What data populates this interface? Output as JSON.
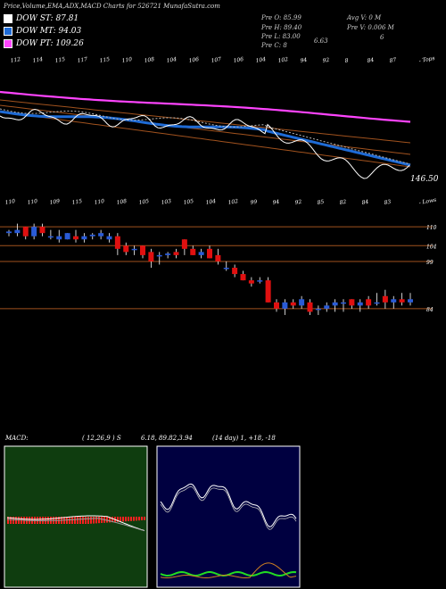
{
  "header": {
    "title": "Price,Volume,EMA,ADX,MACD Charts for 526721 MunafaSutra.com"
  },
  "legend": [
    {
      "label": "DOW ST: 87.81",
      "color": "#ffffff"
    },
    {
      "label": "DOW MT: 94.03",
      "color": "#1e6bd6"
    },
    {
      "label": "DOW PT: 109.26",
      "color": "#ff44ff"
    }
  ],
  "stats": {
    "pre_o": "Pre  O: 85.99",
    "pre_h": "Pre  H: 89.40",
    "pre_l": "Pre  L: 83.00",
    "pre_c": "Pre  C: 8",
    "avg_v": "Avg V: 0  M",
    "pre_v": "Pre  V: 0.006  M",
    "val_663": "6.63",
    "val_6": "6"
  },
  "top_axis": {
    "labels": [
      "112",
      "114",
      "115",
      "117",
      "115",
      "110",
      "108",
      "104",
      "106",
      "107",
      "106",
      "104",
      "102",
      "94",
      "92",
      "8",
      "84",
      "87",
      "- Tops"
    ],
    "bottom_labels": [
      "110",
      "110",
      "109",
      "115",
      "110",
      "108",
      "105",
      "103",
      "105",
      "104",
      "102",
      "99",
      "94",
      "92",
      "85",
      "82",
      "84",
      "83",
      "- Lows"
    ],
    "price_tag": "146.50"
  },
  "price_levels": [
    {
      "label": "110",
      "value": 110
    },
    {
      "label": "104",
      "value": 104
    },
    {
      "label": "99",
      "value": 99
    },
    {
      "label": "84",
      "value": 84
    }
  ],
  "macd_panel": {
    "title": "MACD:",
    "params": "( 12,26,9 ) S",
    "values": "6.18, 89.82,3.94"
  },
  "adx_panel": {
    "title": "(14  day) 1, +18, -18"
  },
  "colors": {
    "bull": "#2a5bd7",
    "bear": "#e01010",
    "level": "#a0521e",
    "macd_bg": "#0f3d0f",
    "adx_bg": "#000040"
  },
  "chart_data": {
    "type": "candlestick",
    "title": "Price,Volume,EMA,ADX,MACD Charts for 526721",
    "ylim": [
      80,
      114
    ],
    "candles": [
      {
        "o": 108,
        "h": 109,
        "l": 107,
        "c": 108.5
      },
      {
        "o": 108,
        "h": 111,
        "l": 107,
        "c": 109
      },
      {
        "o": 110,
        "h": 110,
        "l": 106,
        "c": 107
      },
      {
        "o": 107,
        "h": 111,
        "l": 106,
        "c": 110
      },
      {
        "o": 110,
        "h": 111,
        "l": 107,
        "c": 108
      },
      {
        "o": 107,
        "h": 109,
        "l": 106,
        "c": 107
      },
      {
        "o": 106,
        "h": 109,
        "l": 105,
        "c": 107
      },
      {
        "o": 106,
        "h": 108,
        "l": 106,
        "c": 108
      },
      {
        "o": 107,
        "h": 109,
        "l": 105,
        "c": 106
      },
      {
        "o": 106,
        "h": 108,
        "l": 105,
        "c": 107
      },
      {
        "o": 107,
        "h": 108,
        "l": 106,
        "c": 107.5
      },
      {
        "o": 107,
        "h": 109,
        "l": 106,
        "c": 108
      },
      {
        "o": 106,
        "h": 108,
        "l": 105,
        "c": 107
      },
      {
        "o": 107,
        "h": 108,
        "l": 101,
        "c": 103
      },
      {
        "o": 104,
        "h": 105,
        "l": 101,
        "c": 102
      },
      {
        "o": 103,
        "h": 104,
        "l": 101,
        "c": 103
      },
      {
        "o": 104,
        "h": 104,
        "l": 100,
        "c": 101
      },
      {
        "o": 102,
        "h": 103,
        "l": 97,
        "c": 99
      },
      {
        "o": 101,
        "h": 102,
        "l": 98,
        "c": 101
      },
      {
        "o": 101,
        "h": 102,
        "l": 100,
        "c": 101.5
      },
      {
        "o": 102,
        "h": 103,
        "l": 100,
        "c": 101
      },
      {
        "o": 106,
        "h": 106,
        "l": 101,
        "c": 103
      },
      {
        "o": 103,
        "h": 104,
        "l": 101,
        "c": 101
      },
      {
        "o": 101,
        "h": 103,
        "l": 100,
        "c": 102
      },
      {
        "o": 103,
        "h": 104,
        "l": 100,
        "c": 100
      },
      {
        "o": 101,
        "h": 103,
        "l": 98,
        "c": 99
      },
      {
        "o": 97,
        "h": 99,
        "l": 96,
        "c": 97
      },
      {
        "o": 97,
        "h": 98,
        "l": 94,
        "c": 95
      },
      {
        "o": 95,
        "h": 96,
        "l": 93,
        "c": 93
      },
      {
        "o": 93,
        "h": 94,
        "l": 91,
        "c": 92
      },
      {
        "o": 93,
        "h": 94,
        "l": 92,
        "c": 93
      },
      {
        "o": 93,
        "h": 94,
        "l": 86,
        "c": 86
      },
      {
        "o": 86,
        "h": 87,
        "l": 83,
        "c": 84
      },
      {
        "o": 84,
        "h": 87,
        "l": 82,
        "c": 86
      },
      {
        "o": 86,
        "h": 87,
        "l": 84,
        "c": 85
      },
      {
        "o": 85,
        "h": 88,
        "l": 84,
        "c": 87
      },
      {
        "o": 86,
        "h": 87,
        "l": 82,
        "c": 83
      },
      {
        "o": 84,
        "h": 85,
        "l": 82,
        "c": 84
      },
      {
        "o": 84,
        "h": 86,
        "l": 83,
        "c": 85
      },
      {
        "o": 85,
        "h": 87,
        "l": 83,
        "c": 86
      },
      {
        "o": 86,
        "h": 87,
        "l": 83,
        "c": 86
      },
      {
        "o": 87,
        "h": 87,
        "l": 84,
        "c": 85
      },
      {
        "o": 85,
        "h": 87,
        "l": 83,
        "c": 86
      },
      {
        "o": 87,
        "h": 88,
        "l": 84,
        "c": 85
      },
      {
        "o": 86,
        "h": 89,
        "l": 85,
        "c": 86
      },
      {
        "o": 88,
        "h": 90,
        "l": 84,
        "c": 86
      },
      {
        "o": 86,
        "h": 88,
        "l": 84,
        "c": 87
      },
      {
        "o": 87,
        "h": 89,
        "l": 85,
        "c": 86
      },
      {
        "o": 86,
        "h": 89,
        "l": 85,
        "c": 87
      }
    ]
  }
}
